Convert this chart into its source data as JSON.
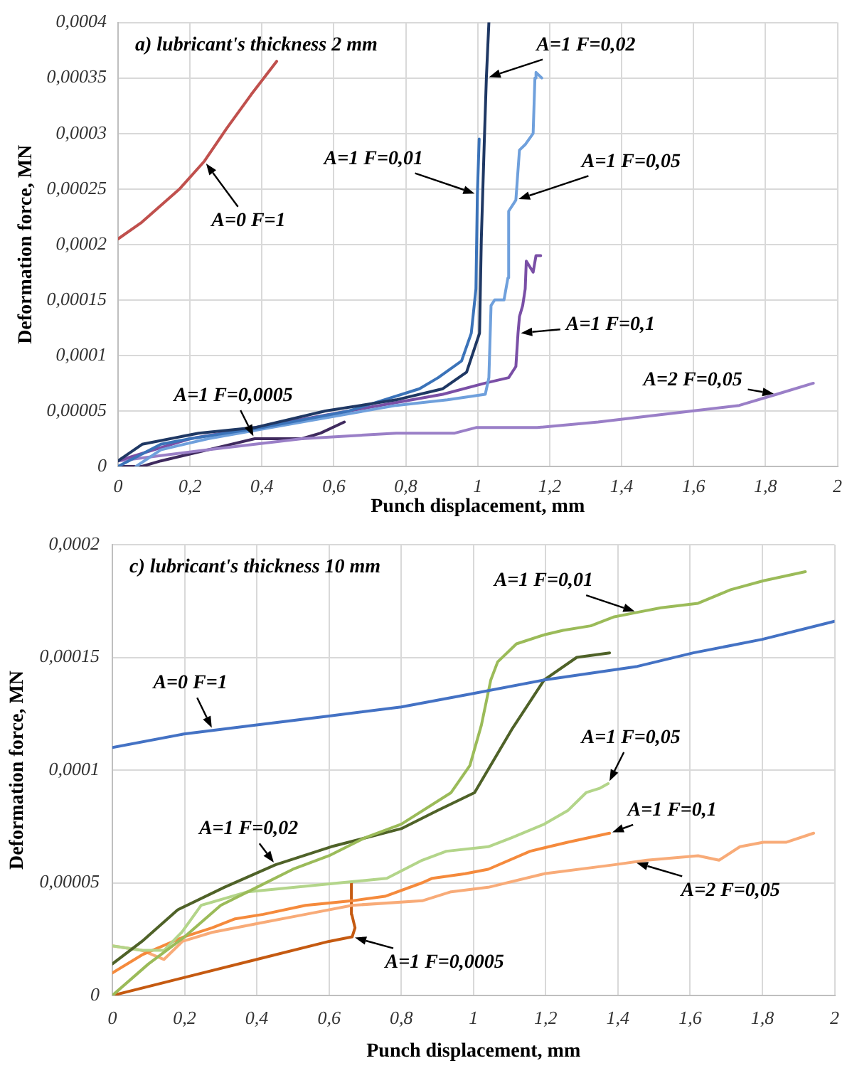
{
  "chart_data": [
    {
      "type": "line",
      "title": "a) lubricant's thickness 2 mm",
      "xlabel": "Punch displacement, mm",
      "ylabel": "Deformation force, MN",
      "grid": true,
      "xlim": [
        0,
        2
      ],
      "xticks": [
        0,
        {
          "value": 0.2,
          "label": "0,2"
        },
        {
          "value": 0.4,
          "label": "0,4"
        },
        {
          "value": 0.6,
          "label": "0,6"
        },
        {
          "value": 0.8,
          "label": "0,8"
        },
        1,
        {
          "value": 1.2,
          "label": "1,2"
        },
        {
          "value": 1.4,
          "label": "1,4"
        },
        {
          "value": 1.6,
          "label": "1,6"
        },
        {
          "value": 1.8,
          "label": "1,8"
        },
        2
      ],
      "ylim": [
        0,
        0.0004
      ],
      "yticks": [
        0,
        {
          "value": 5e-05,
          "label": "0,00005"
        },
        {
          "value": 0.0001,
          "label": "0,0001"
        },
        {
          "value": 0.00015,
          "label": "0,00015"
        },
        {
          "value": 0.0002,
          "label": "0,0002"
        },
        {
          "value": 0.00025,
          "label": "0,00025"
        },
        {
          "value": 0.0003,
          "label": "0,0003"
        },
        {
          "value": 0.00035,
          "label": "0,00035"
        },
        {
          "value": 0.0004,
          "label": "0,0004"
        }
      ],
      "series": [
        {
          "name": "A=0 F=1",
          "color": "#c0504d",
          "x": [
            0,
            0.066,
            0.171,
            0.24,
            0.303,
            0.37,
            0.441
          ],
          "values": [
            0.000205,
            0.00022,
            0.00025,
            0.000275,
            0.000305,
            0.000335,
            0.000365
          ]
        },
        {
          "name": "A=1 F=0,02",
          "color": "#1f3864",
          "x": [
            0,
            0.067,
            0.224,
            0.38,
            0.576,
            0.773,
            0.903,
            0.969,
            1.005,
            1.01,
            1.018,
            1.024,
            1.031
          ],
          "values": [
            5e-06,
            2e-05,
            3e-05,
            3.5e-05,
            5e-05,
            6e-05,
            7e-05,
            8.5e-05,
            0.00012,
            0.000205,
            0.00029,
            0.00035,
            0.0004
          ]
        },
        {
          "name": "A=1 F=0,01",
          "color": "#3b73b9",
          "x": [
            0,
            0.119,
            0.2,
            0.4,
            0.642,
            0.838,
            0.89,
            0.955,
            0.982,
            0.995,
            0.999,
            1.004
          ],
          "values": [
            0,
            2e-05,
            2.5e-05,
            3.5e-05,
            5e-05,
            7e-05,
            8e-05,
            9.5e-05,
            0.00012,
            0.00016,
            0.000245,
            0.000295
          ]
        },
        {
          "name": "A=1 F=0,05",
          "color": "#6fa0dc",
          "x": [
            0.05,
            0.119,
            0.25,
            0.511,
            0.773,
            0.916,
            1.021,
            1.031,
            1.037,
            1.047,
            1.073,
            1.084,
            1.086,
            1.106,
            1.116,
            1.132,
            1.154,
            1.159,
            1.162,
            1.178
          ],
          "values": [
            0,
            1.5e-05,
            2.5e-05,
            4e-05,
            5.5e-05,
            6e-05,
            6.5e-05,
            8e-05,
            0.000145,
            0.00015,
            0.00015,
            0.00017,
            0.00023,
            0.00024,
            0.000285,
            0.00029,
            0.0003,
            0.00035,
            0.000355,
            0.00035
          ]
        },
        {
          "name": "A=1 F=0,1",
          "color": "#7a4fa6",
          "x": [
            0,
            0.2,
            0.38,
            0.642,
            0.903,
            1.02,
            1.086,
            1.106,
            1.112,
            1.116,
            1.125,
            1.132,
            1.135,
            1.154,
            1.162,
            1.175
          ],
          "values": [
            5e-06,
            2.5e-05,
            3.5e-05,
            5e-05,
            6.5e-05,
            7.5e-05,
            8e-05,
            9e-05,
            0.00012,
            0.000135,
            0.000145,
            0.00016,
            0.000185,
            0.000175,
            0.00019,
            0.00019
          ]
        },
        {
          "name": "A=2 F=0,05",
          "color": "#9a7fc7",
          "x": [
            0,
            0.25,
            0.511,
            0.773,
            0.936,
            0.995,
            1.165,
            1.335,
            1.465,
            1.596,
            1.727,
            1.831,
            1.933
          ],
          "values": [
            5e-06,
            1.5e-05,
            2.5e-05,
            3e-05,
            3e-05,
            3.5e-05,
            3.5e-05,
            4e-05,
            4.5e-05,
            5e-05,
            5.5e-05,
            6.5e-05,
            7.5e-05
          ]
        },
        {
          "name": "A=1 F=0,0005",
          "color": "#3f2a5e",
          "x": [
            0,
            0.066,
            0.119,
            0.25,
            0.38,
            0.511,
            0.563,
            0.629
          ],
          "values": [
            0,
            0,
            5e-06,
            1.5e-05,
            2.5e-05,
            2.5e-05,
            3e-05,
            4e-05
          ]
        }
      ]
    },
    {
      "type": "line",
      "title": "c) lubricant's thickness 10 mm",
      "xlabel": "Punch displacement, mm",
      "ylabel": "Deformation force, MN",
      "grid": true,
      "xlim": [
        0,
        2
      ],
      "xticks": [
        0,
        {
          "value": 0.2,
          "label": "0,2"
        },
        {
          "value": 0.4,
          "label": "0,4"
        },
        {
          "value": 0.6,
          "label": "0,6"
        },
        {
          "value": 0.8,
          "label": "0,8"
        },
        1,
        {
          "value": 1.2,
          "label": "1,2"
        },
        {
          "value": 1.4,
          "label": "1,4"
        },
        {
          "value": 1.6,
          "label": "1,6"
        },
        {
          "value": 1.8,
          "label": "1,8"
        },
        2
      ],
      "ylim": [
        0,
        0.0002
      ],
      "yticks": [
        0,
        {
          "value": 5e-05,
          "label": "0,00005"
        },
        {
          "value": 0.0001,
          "label": "0,0001"
        },
        {
          "value": 0.00015,
          "label": "0,00015"
        },
        {
          "value": 0.0002,
          "label": "0,0002"
        }
      ],
      "series": [
        {
          "name": "A=0 F=1",
          "color": "#4472c4",
          "x": [
            0,
            0.198,
            0.4,
            0.6,
            0.8,
            1.0,
            1.196,
            1.454,
            1.609,
            1.8,
            2.0
          ],
          "values": [
            0.00011,
            0.000116,
            0.00012,
            0.000124,
            0.000128,
            0.000134,
            0.00014,
            0.000146,
            0.000152,
            0.000158,
            0.000166
          ]
        },
        {
          "name": "A=1 F=0,01",
          "color": "#9bbb59",
          "x": [
            0,
            0.1,
            0.2,
            0.3,
            0.4,
            0.5,
            0.6,
            0.7,
            0.8,
            0.938,
            0.99,
            1.022,
            1.048,
            1.067,
            1.119,
            1.196,
            1.248,
            1.325,
            1.39,
            1.454,
            1.519,
            1.622,
            1.712,
            1.803,
            1.919
          ],
          "values": [
            0,
            1.4e-05,
            2.6e-05,
            4e-05,
            4.8e-05,
            5.6e-05,
            6.2e-05,
            7e-05,
            7.6e-05,
            9e-05,
            0.000102,
            0.00012,
            0.00014,
            0.000148,
            0.000156,
            0.00016,
            0.000162,
            0.000164,
            0.000168,
            0.00017,
            0.000172,
            0.000174,
            0.00018,
            0.000184,
            0.000188
          ]
        },
        {
          "name": "A=1 F=0,02",
          "color": "#4f6228",
          "x": [
            0,
            0.082,
            0.181,
            0.31,
            0.452,
            0.606,
            0.8,
            0.9,
            1.003,
            1.106,
            1.196,
            1.286,
            1.377
          ],
          "values": [
            1.4e-05,
            2.4e-05,
            3.8e-05,
            4.8e-05,
            5.8e-05,
            6.6e-05,
            7.4e-05,
            8.2e-05,
            9e-05,
            0.000118,
            0.00014,
            0.00015,
            0.000152
          ]
        },
        {
          "name": "A=1 F=0,05",
          "color": "#b3d58a",
          "x": [
            0,
            0.082,
            0.143,
            0.192,
            0.246,
            0.375,
            0.632,
            0.76,
            0.858,
            0.925,
            1.041,
            1.106,
            1.196,
            1.261,
            1.312,
            1.351,
            1.373
          ],
          "values": [
            2.2e-05,
            2e-05,
            2e-05,
            2.8e-05,
            4e-05,
            4.6e-05,
            5e-05,
            5.2e-05,
            6e-05,
            6.4e-05,
            6.6e-05,
            7e-05,
            7.6e-05,
            8.2e-05,
            9e-05,
            9.2e-05,
            9.4e-05
          ]
        },
        {
          "name": "A=1 F=0,1",
          "color": "#f58a3c",
          "x": [
            0,
            0.082,
            0.198,
            0.276,
            0.34,
            0.418,
            0.535,
            0.664,
            0.755,
            0.858,
            0.886,
            0.977,
            1.041,
            1.157,
            1.261,
            1.377
          ],
          "values": [
            1e-05,
            1.8e-05,
            2.6e-05,
            3e-05,
            3.4e-05,
            3.6e-05,
            4e-05,
            4.2e-05,
            4.4e-05,
            5e-05,
            5.2e-05,
            5.4e-05,
            5.6e-05,
            6.4e-05,
            6.8e-05,
            7.2e-05
          ]
        },
        {
          "name": "A=2 F=0,05",
          "color": "#f8ab78",
          "x": [
            0,
            0.082,
            0.143,
            0.194,
            0.276,
            0.405,
            0.535,
            0.664,
            0.858,
            0.938,
            1.041,
            1.196,
            1.39,
            1.48,
            1.622,
            1.68,
            1.738,
            1.803,
            1.867,
            1.942
          ],
          "values": [
            2.2e-05,
            2e-05,
            1.6e-05,
            2.4e-05,
            2.8e-05,
            3.2e-05,
            3.6e-05,
            4e-05,
            4.2e-05,
            4.6e-05,
            4.8e-05,
            5.4e-05,
            5.8e-05,
            6e-05,
            6.2e-05,
            6e-05,
            6.6e-05,
            6.8e-05,
            6.8e-05,
            7.2e-05
          ]
        },
        {
          "name": "A=1 F=0,0005",
          "color": "#c55a11",
          "x": [
            0,
            0.2,
            0.4,
            0.6,
            0.664,
            0.672,
            0.663,
            0.662
          ],
          "values": [
            0,
            8e-06,
            1.6e-05,
            2.4e-05,
            2.6e-05,
            3e-05,
            3.6e-05,
            5e-05
          ]
        }
      ]
    }
  ]
}
